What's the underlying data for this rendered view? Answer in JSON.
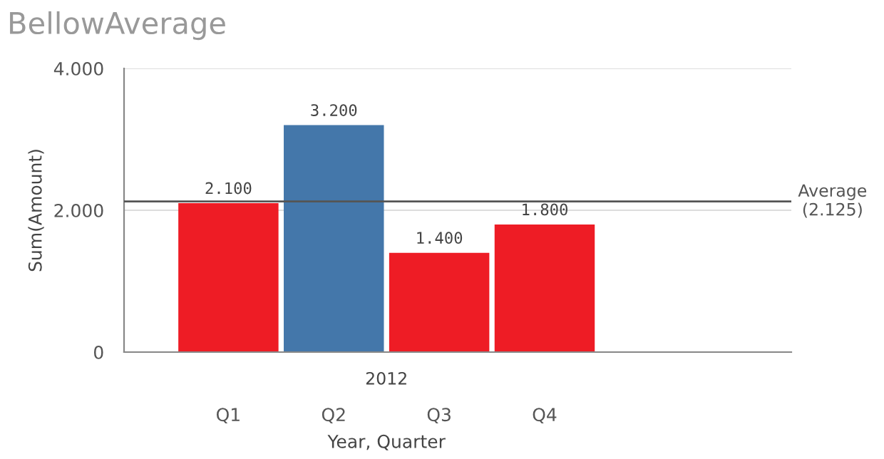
{
  "chart_data": {
    "type": "bar",
    "title": "BellowAverage",
    "xlabel": "Year, Quarter",
    "ylabel": "Sum(Amount)",
    "categories": [
      "Q1",
      "Q2",
      "Q3",
      "Q4"
    ],
    "values": [
      2100,
      3200,
      1400,
      1800
    ],
    "colors": [
      "#ee1c25",
      "#4477aa",
      "#ee1c25",
      "#ee1c25"
    ],
    "value_labels": [
      "2.100",
      "3.200",
      "1.400",
      "1.800"
    ],
    "ylim": [
      0,
      4000
    ],
    "yticks": [
      {
        "value": 0,
        "label": "0"
      },
      {
        "value": 2000,
        "label": "2.000"
      },
      {
        "value": 4000,
        "label": "4.000"
      }
    ],
    "grid": "y",
    "ref_lines": [
      {
        "axis": "y",
        "value": 2125,
        "label": "Average\n(2.125)",
        "color": "#555555"
      }
    ],
    "annotations": [
      "2012"
    ]
  }
}
